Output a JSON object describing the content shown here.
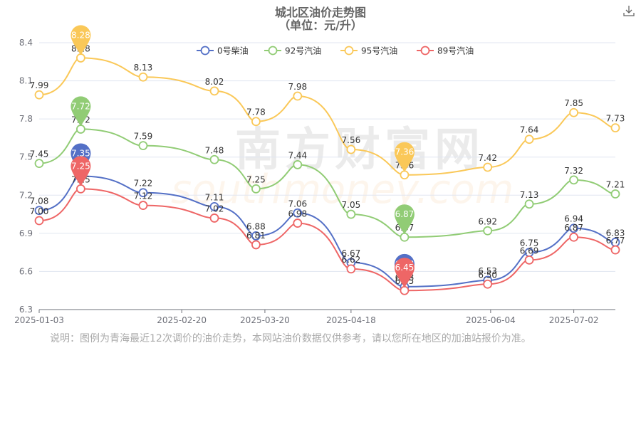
{
  "title": "城北区油价走势图",
  "subtitle": "（单位：元/升）",
  "note": "说明：图例为青海最近12次调价的油价走势，本网站油价数据仅供参考，请以您所在地区的加油站报价为准。",
  "watermark": {
    "cn": "南方财富网",
    "en": "southmoney.com"
  },
  "toolbox": {
    "download_icon": "download-icon"
  },
  "chart_data": {
    "type": "line",
    "x": [
      "2025-01-03",
      "2025-01-17",
      "2025-02-07",
      "2025-03-03",
      "2025-03-17",
      "2025-03-31",
      "2025-04-18",
      "2025-05-06",
      "2025-06-03",
      "2025-06-17",
      "2025-07-02",
      "2025-07-16"
    ],
    "xticks": [
      "2025-01-03",
      "2025-02-20",
      "2025-03-20",
      "2025-04-18",
      "2025-06-04",
      "2025-07-02"
    ],
    "yticks": [
      "6.3",
      "6.6",
      "6.9",
      "7.2",
      "7.5",
      "7.8",
      "8.1",
      "8.4"
    ],
    "ylim": [
      6.3,
      8.4
    ],
    "grid": true,
    "legend_position": "top-center",
    "series": [
      {
        "name": "0号柴油",
        "color": "#5470c6",
        "values": [
          7.08,
          7.35,
          7.22,
          7.11,
          6.88,
          7.06,
          6.67,
          6.48,
          6.53,
          6.75,
          6.94,
          6.83
        ]
      },
      {
        "name": "92号汽油",
        "color": "#91cc75",
        "values": [
          7.45,
          7.72,
          7.59,
          7.48,
          7.25,
          7.44,
          7.05,
          6.87,
          6.92,
          7.13,
          7.32,
          7.21
        ]
      },
      {
        "name": "95号汽油",
        "color": "#fac858",
        "values": [
          7.99,
          8.28,
          8.13,
          8.02,
          7.78,
          7.98,
          7.56,
          7.36,
          7.42,
          7.64,
          7.85,
          7.73
        ]
      },
      {
        "name": "89号汽油",
        "color": "#ee6666",
        "values": [
          7.0,
          7.25,
          7.12,
          7.02,
          6.81,
          6.98,
          6.62,
          6.45,
          6.5,
          6.69,
          6.87,
          6.77
        ]
      }
    ],
    "markpoints": [
      {
        "series": 0,
        "index": 1,
        "label": "7.35"
      },
      {
        "series": 0,
        "index": 7,
        "label": "6.48"
      },
      {
        "series": 1,
        "index": 1,
        "label": "7.72"
      },
      {
        "series": 1,
        "index": 7,
        "label": "6.87"
      },
      {
        "series": 2,
        "index": 1,
        "label": "8.28"
      },
      {
        "series": 2,
        "index": 7,
        "label": "7.36"
      },
      {
        "series": 3,
        "index": 1,
        "label": "7.25"
      },
      {
        "series": 3,
        "index": 7,
        "label": "6.45"
      }
    ]
  }
}
